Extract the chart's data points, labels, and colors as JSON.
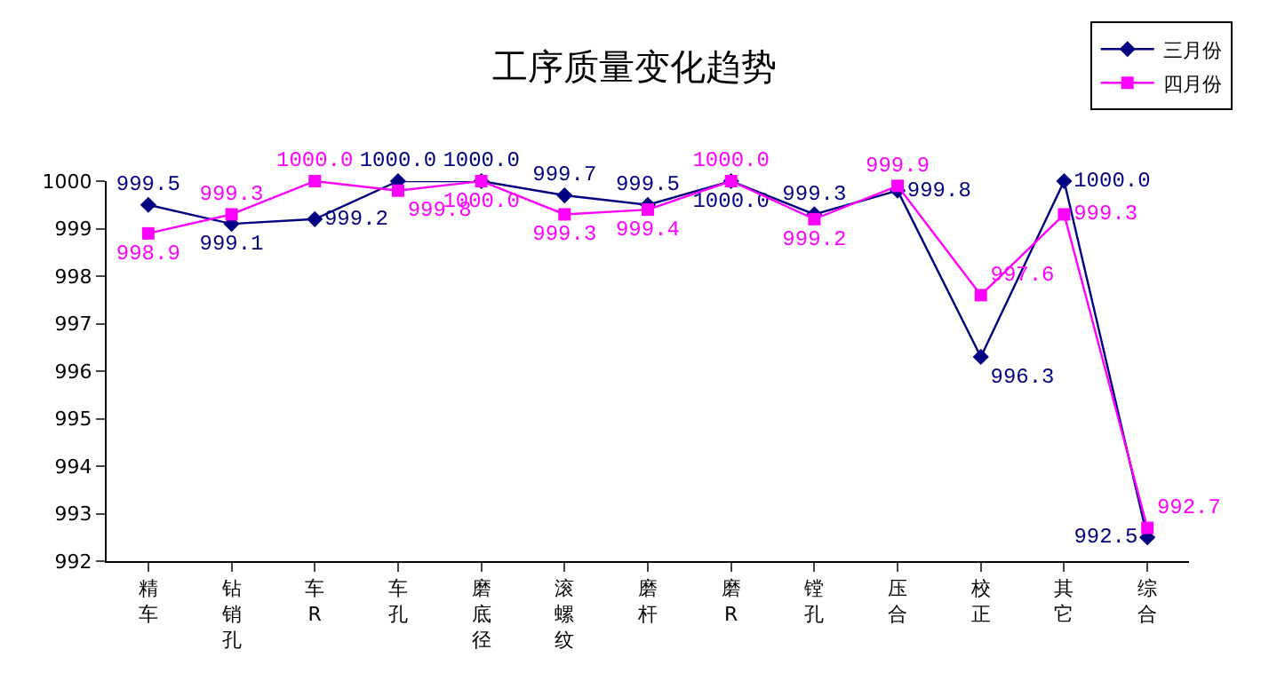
{
  "chart_data": {
    "type": "line",
    "title": "工序质量变化趋势",
    "categories": [
      "精车",
      "钻销孔",
      "车R",
      "车孔",
      "磨底径",
      "滚螺纹",
      "磨杆",
      "磨R",
      "镗孔",
      "压合",
      "校正",
      "其它",
      "综合"
    ],
    "series": [
      {
        "name": "三月份",
        "color": "#000080",
        "marker": "diamond",
        "values": [
          999.5,
          999.1,
          999.2,
          1000.0,
          1000.0,
          999.7,
          999.5,
          1000.0,
          999.3,
          999.8,
          996.3,
          1000.0,
          992.5
        ],
        "value_labels": [
          "999.5",
          "999.1",
          "999.2",
          "1000.0",
          "1000.0",
          "999.7",
          "999.5",
          "1000.0",
          "999.3",
          "999.8",
          "996.3",
          "1000.0",
          "992.5"
        ]
      },
      {
        "name": "四月份",
        "color": "#ff00ff",
        "marker": "square",
        "values": [
          998.9,
          999.3,
          1000.0,
          999.8,
          1000.0,
          999.3,
          999.4,
          1000.0,
          999.2,
          999.9,
          997.6,
          999.3,
          992.7
        ],
        "value_labels": [
          "998.9",
          "999.3",
          "1000.0",
          "999.8",
          "1000.0",
          "999.3",
          "999.4",
          "1000.0",
          "999.2",
          "999.9",
          "997.6",
          "999.3",
          "992.7"
        ]
      }
    ],
    "ylim": [
      992,
      1000
    ],
    "yticks": [
      992,
      993,
      994,
      995,
      996,
      997,
      998,
      999,
      1000
    ],
    "legend": "top right",
    "line_style": "solid"
  }
}
